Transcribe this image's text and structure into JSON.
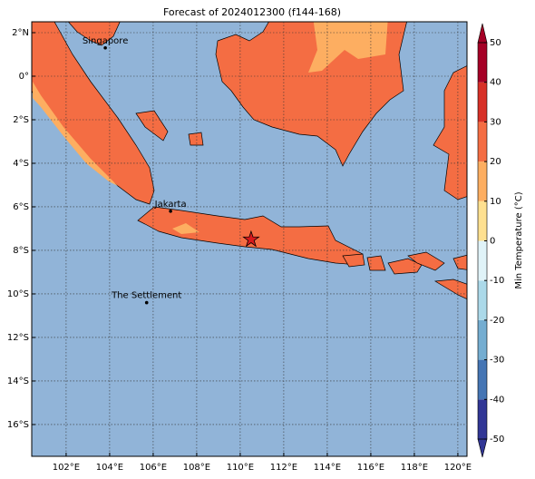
{
  "chart_data": {
    "type": "map",
    "title": "Forecast of 2024012300 (f144-168)",
    "xlim": [
      100.42,
      120.42
    ],
    "ylim": [
      -17.46,
      2.5
    ],
    "xticks": [
      {
        "value": 102,
        "label": "102°E"
      },
      {
        "value": 104,
        "label": "104°E"
      },
      {
        "value": 106,
        "label": "106°E"
      },
      {
        "value": 108,
        "label": "108°E"
      },
      {
        "value": 110,
        "label": "110°E"
      },
      {
        "value": 112,
        "label": "112°E"
      },
      {
        "value": 114,
        "label": "114°E"
      },
      {
        "value": 116,
        "label": "116°E"
      },
      {
        "value": 118,
        "label": "118°E"
      },
      {
        "value": 120,
        "label": "120°E"
      }
    ],
    "yticks": [
      {
        "value": 2,
        "label": "2°N"
      },
      {
        "value": 0,
        "label": "0°"
      },
      {
        "value": -2,
        "label": "2°S"
      },
      {
        "value": -4,
        "label": "4°S"
      },
      {
        "value": -6,
        "label": "6°S"
      },
      {
        "value": -8,
        "label": "8°S"
      },
      {
        "value": -10,
        "label": "10°S"
      },
      {
        "value": -12,
        "label": "12°S"
      },
      {
        "value": -14,
        "label": "14°S"
      },
      {
        "value": -16,
        "label": "16°S"
      }
    ],
    "grid": true,
    "places": [
      {
        "name": "Singapore",
        "lat": 1.3,
        "lon": 103.8
      },
      {
        "name": "Jakarta",
        "lat": -6.2,
        "lon": 106.8
      },
      {
        "name": "The Settlement",
        "lat": -10.4,
        "lon": 105.7
      }
    ],
    "star": {
      "lat": -7.5,
      "lon": 110.5,
      "color": "#d7191c"
    },
    "colorbar": {
      "label": "Min Temperature (°C)",
      "ticks": [
        -50,
        -40,
        -30,
        -20,
        -10,
        0,
        10,
        20,
        30,
        40,
        50
      ],
      "colors": [
        "#313695",
        "#4575b4",
        "#74add1",
        "#abd9e9",
        "#e0f3f8",
        "#fee090",
        "#fdae61",
        "#f46d43",
        "#d73027",
        "#a50026"
      ]
    }
  }
}
